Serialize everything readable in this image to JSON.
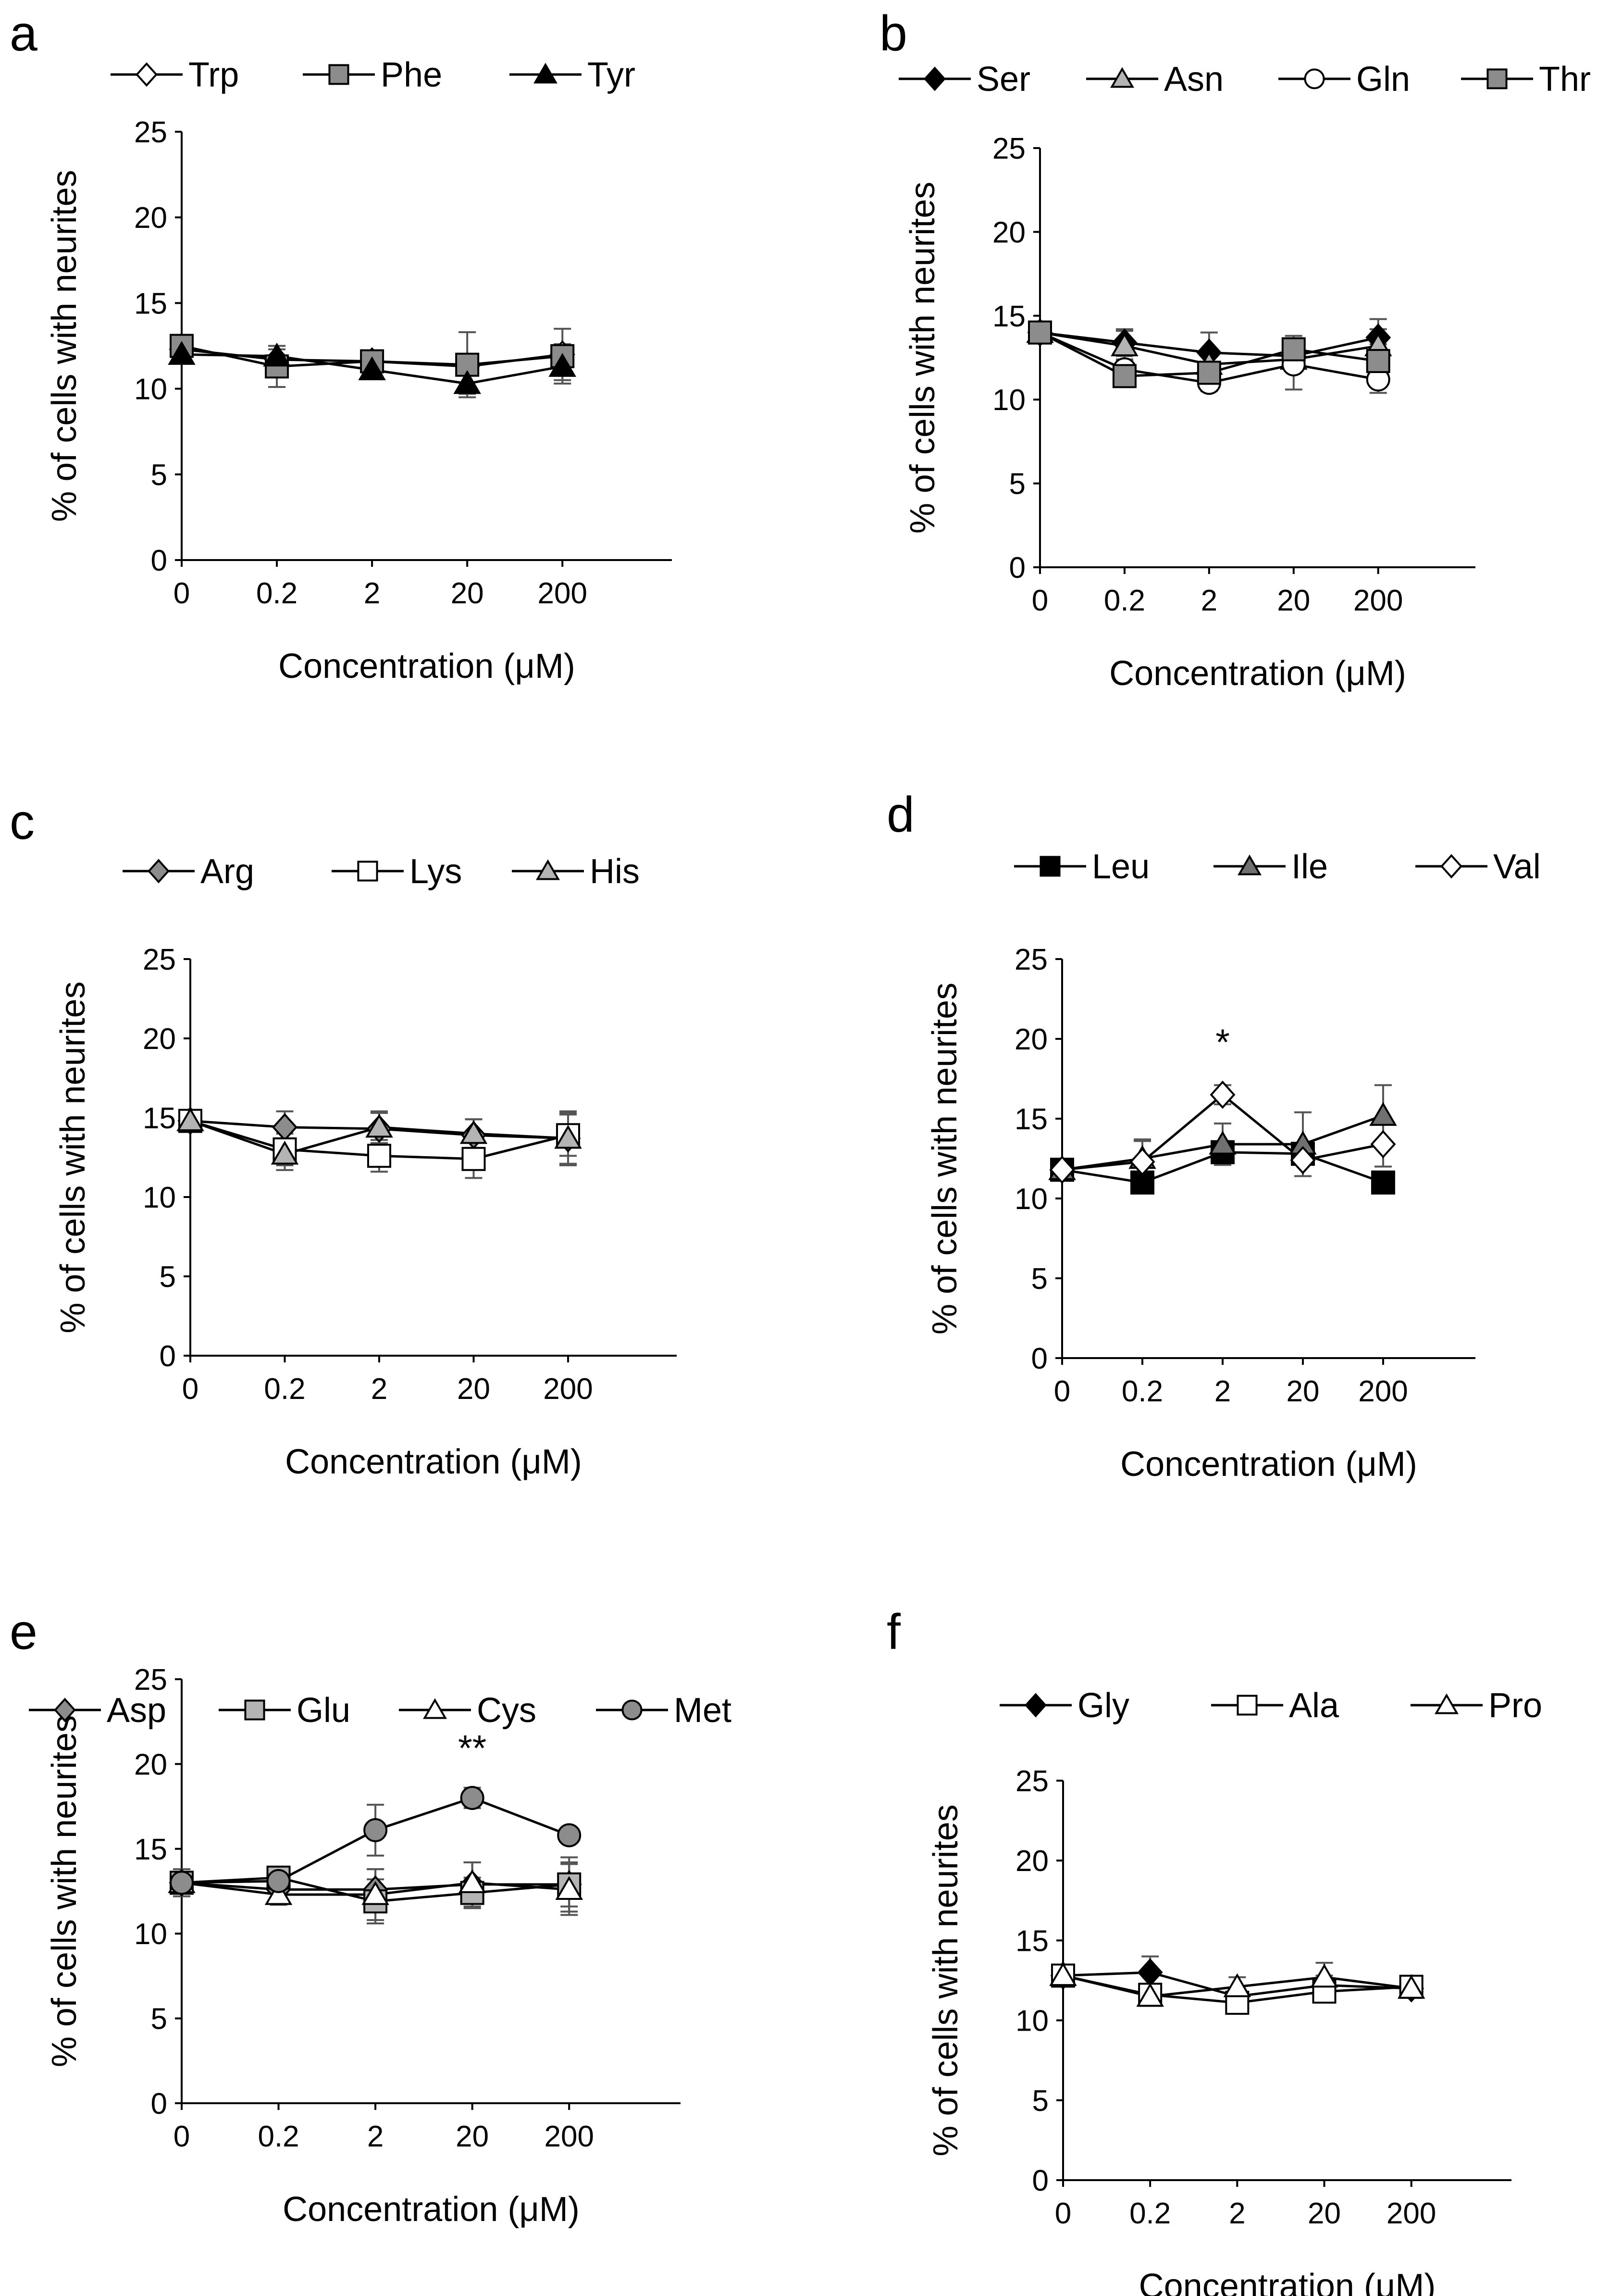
{
  "figure": {
    "y_axis_title": "% of cells with neurites",
    "x_axis_title": "Concentration (μM)"
  },
  "chart_data": [
    {
      "panel": "a",
      "type": "line",
      "categories": [
        "0",
        "0.2",
        "2",
        "20",
        "200"
      ],
      "xlabel": "Concentration (μM)",
      "ylabel": "% of cells with neurites",
      "ylim": [
        0,
        25
      ],
      "yticks": [
        0,
        5,
        10,
        15,
        20,
        25
      ],
      "series": [
        {
          "name": "Trp",
          "marker": "diamond",
          "fill": "#ffffff",
          "values": [
            12.3,
            11.7,
            11.6,
            11.3,
            12.0
          ],
          "err": [
            0.4,
            0.6,
            0.3,
            0.5,
            0.6
          ]
        },
        {
          "name": "Phe",
          "marker": "square",
          "fill": "#8c8c8c",
          "values": [
            12.5,
            11.3,
            11.6,
            11.4,
            11.9
          ],
          "err": [
            0.6,
            1.2,
            0.5,
            1.9,
            1.6
          ]
        },
        {
          "name": "Tyr",
          "marker": "triangle",
          "fill": "#000000",
          "values": [
            12.0,
            11.9,
            11.1,
            10.3,
            11.3
          ],
          "err": [
            0.5,
            0.6,
            0.4,
            0.6,
            0.8
          ]
        }
      ],
      "annotations": []
    },
    {
      "panel": "b",
      "type": "line",
      "categories": [
        "0",
        "0.2",
        "2",
        "20",
        "200"
      ],
      "xlabel": "Concentration (μM)",
      "ylabel": "% of cells with neurites",
      "ylim": [
        0,
        25
      ],
      "yticks": [
        0,
        5,
        10,
        15,
        20,
        25
      ],
      "series": [
        {
          "name": "Ser",
          "marker": "diamond",
          "fill": "#000000",
          "values": [
            14.0,
            13.4,
            12.8,
            12.6,
            13.7
          ],
          "err": [
            0.5,
            0.8,
            1.2,
            0.8,
            1.1
          ]
        },
        {
          "name": "Asn",
          "marker": "triangle",
          "fill": "#b4b4b4",
          "values": [
            14.0,
            13.2,
            12.1,
            12.4,
            13.2
          ],
          "err": [
            0.5,
            0.9,
            0.9,
            0.7,
            1.0
          ]
        },
        {
          "name": "Gln",
          "marker": "circle",
          "fill": "#ffffff",
          "values": [
            14.0,
            11.8,
            11.0,
            12.1,
            11.2
          ],
          "err": [
            0.5,
            0.6,
            0.5,
            1.5,
            0.8
          ]
        },
        {
          "name": "Thr",
          "marker": "square",
          "fill": "#8c8c8c",
          "values": [
            14.0,
            11.4,
            11.6,
            13.0,
            12.3
          ],
          "err": [
            0.5,
            0.6,
            0.6,
            0.8,
            1.0
          ]
        }
      ],
      "annotations": []
    },
    {
      "panel": "c",
      "type": "line",
      "categories": [
        "0",
        "0.2",
        "2",
        "20",
        "200"
      ],
      "xlabel": "Concentration (μM)",
      "ylabel": "% of cells with neurites",
      "ylim": [
        0,
        25
      ],
      "yticks": [
        0,
        5,
        10,
        15,
        20,
        25
      ],
      "series": [
        {
          "name": "Arg",
          "marker": "diamond",
          "fill": "#8c8c8c",
          "values": [
            14.8,
            14.4,
            14.3,
            13.9,
            13.7
          ],
          "err": [
            0.6,
            1.0,
            1.0,
            1.0,
            1.6
          ]
        },
        {
          "name": "Lys",
          "marker": "square",
          "fill": "#ffffff",
          "values": [
            14.8,
            13.0,
            12.6,
            12.4,
            13.9
          ],
          "err": [
            0.6,
            1.0,
            1.0,
            1.2,
            1.3
          ]
        },
        {
          "name": "His",
          "marker": "triangle",
          "fill": "#b4b4b4",
          "values": [
            14.8,
            12.7,
            14.4,
            14.0,
            13.7
          ],
          "err": [
            0.6,
            1.0,
            1.0,
            0.9,
            1.7
          ]
        }
      ],
      "annotations": []
    },
    {
      "panel": "d",
      "type": "line",
      "categories": [
        "0",
        "0.2",
        "2",
        "20",
        "200"
      ],
      "xlabel": "Concentration (μM)",
      "ylabel": "% of cells with neurites",
      "ylim": [
        0,
        25
      ],
      "yticks": [
        0,
        5,
        10,
        15,
        20,
        25
      ],
      "series": [
        {
          "name": "Leu",
          "marker": "square",
          "fill": "#000000",
          "values": [
            11.8,
            11.0,
            12.9,
            12.8,
            11.0
          ],
          "err": [
            0.5,
            0.5,
            0.5,
            0.6,
            0.4
          ]
        },
        {
          "name": "Ile",
          "marker": "triangle",
          "fill": "#707070",
          "values": [
            11.8,
            12.5,
            13.4,
            13.4,
            15.2
          ],
          "err": [
            0.5,
            1.2,
            1.3,
            2.0,
            1.9
          ]
        },
        {
          "name": "Val",
          "marker": "diamond",
          "fill": "#ffffff",
          "values": [
            11.8,
            12.3,
            16.5,
            12.4,
            13.4
          ],
          "err": [
            0.5,
            1.3,
            0.6,
            1.0,
            1.4
          ]
        }
      ],
      "annotations": [
        {
          "text": "*",
          "category": "2",
          "y": 19.0
        }
      ]
    },
    {
      "panel": "e",
      "type": "line",
      "categories": [
        "0",
        "0.2",
        "2",
        "20",
        "200"
      ],
      "xlabel": "Concentration (μM)",
      "ylabel": "% of cells with neurites",
      "ylim": [
        0,
        25
      ],
      "yticks": [
        0,
        5,
        10,
        15,
        20,
        25
      ],
      "series": [
        {
          "name": "Asp",
          "marker": "diamond",
          "fill": "#8c8c8c",
          "values": [
            13.0,
            12.6,
            12.6,
            12.9,
            12.9
          ],
          "err": [
            0.6,
            0.8,
            1.2,
            1.3,
            1.6
          ]
        },
        {
          "name": "Glu",
          "marker": "square",
          "fill": "#b4b4b4",
          "values": [
            13.0,
            13.3,
            11.9,
            12.4,
            12.9
          ],
          "err": [
            0.8,
            0.6,
            1.3,
            0.9,
            1.3
          ]
        },
        {
          "name": "Cys",
          "marker": "triangle",
          "fill": "#ffffff",
          "values": [
            13.0,
            12.3,
            12.3,
            13.0,
            12.6
          ],
          "err": [
            0.6,
            0.6,
            1.5,
            1.2,
            1.5
          ]
        },
        {
          "name": "Met",
          "marker": "circle",
          "fill": "#8c8c8c",
          "values": [
            13.0,
            13.1,
            16.1,
            18.0,
            15.8
          ],
          "err": [
            0.6,
            0.5,
            1.5,
            0.6,
            0.3
          ]
        }
      ],
      "annotations": [
        {
          "text": "**",
          "category": "20",
          "y": 20.2
        }
      ]
    },
    {
      "panel": "f",
      "type": "line",
      "categories": [
        "0",
        "0.2",
        "2",
        "20",
        "200"
      ],
      "xlabel": "Concentration (μM)",
      "ylabel": "% of cells with neurites",
      "ylim": [
        0,
        25
      ],
      "yticks": [
        0,
        5,
        10,
        15,
        20,
        25
      ],
      "series": [
        {
          "name": "Gly",
          "marker": "diamond",
          "fill": "#000000",
          "values": [
            12.8,
            13.0,
            11.5,
            12.2,
            12.0
          ],
          "err": [
            0.5,
            1.0,
            0.5,
            0.6,
            0.4
          ]
        },
        {
          "name": "Ala",
          "marker": "square",
          "fill": "#ffffff",
          "values": [
            12.8,
            11.6,
            11.1,
            11.8,
            12.1
          ],
          "err": [
            0.5,
            0.5,
            0.6,
            0.5,
            0.4
          ]
        },
        {
          "name": "Pro",
          "marker": "triangle",
          "fill": "#ffffff",
          "values": [
            12.8,
            11.5,
            12.1,
            12.7,
            12.0
          ],
          "err": [
            0.5,
            0.5,
            0.6,
            0.9,
            0.4
          ]
        }
      ],
      "annotations": []
    }
  ]
}
